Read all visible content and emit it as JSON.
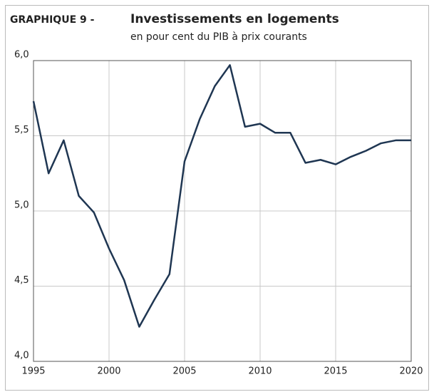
{
  "chart_data": {
    "type": "line",
    "label": "GRAPHIQUE 9 -",
    "title": "Investissements en logements",
    "subtitle": "en pour cent du PIB à prix courants",
    "x": [
      1995,
      1996,
      1997,
      1998,
      1999,
      2000,
      2001,
      2002,
      2003,
      2004,
      2005,
      2006,
      2007,
      2008,
      2009,
      2010,
      2011,
      2012,
      2013,
      2014,
      2015,
      2016,
      2017,
      2018,
      2019,
      2020
    ],
    "series": [
      {
        "color": "#1f3652",
        "values": [
          5.73,
          5.25,
          5.47,
          5.1,
          4.99,
          4.75,
          4.54,
          4.23,
          4.41,
          4.58,
          5.33,
          5.61,
          5.83,
          5.97,
          5.56,
          5.58,
          5.52,
          5.52,
          5.32,
          5.34,
          5.31,
          5.36,
          5.4,
          5.45,
          5.47,
          5.47
        ]
      }
    ],
    "xlim": [
      1995,
      2020
    ],
    "xticks": [
      1995,
      2000,
      2005,
      2010,
      2015,
      2020
    ],
    "ylim": [
      4,
      6
    ],
    "yticks": [
      {
        "value": 4,
        "label": "4,0"
      },
      {
        "value": 4.5,
        "label": "4,5"
      },
      {
        "value": 5,
        "label": "5,0"
      },
      {
        "value": 5.5,
        "label": "5,5"
      },
      {
        "value": 6,
        "label": "6,0"
      }
    ],
    "grid": true
  }
}
